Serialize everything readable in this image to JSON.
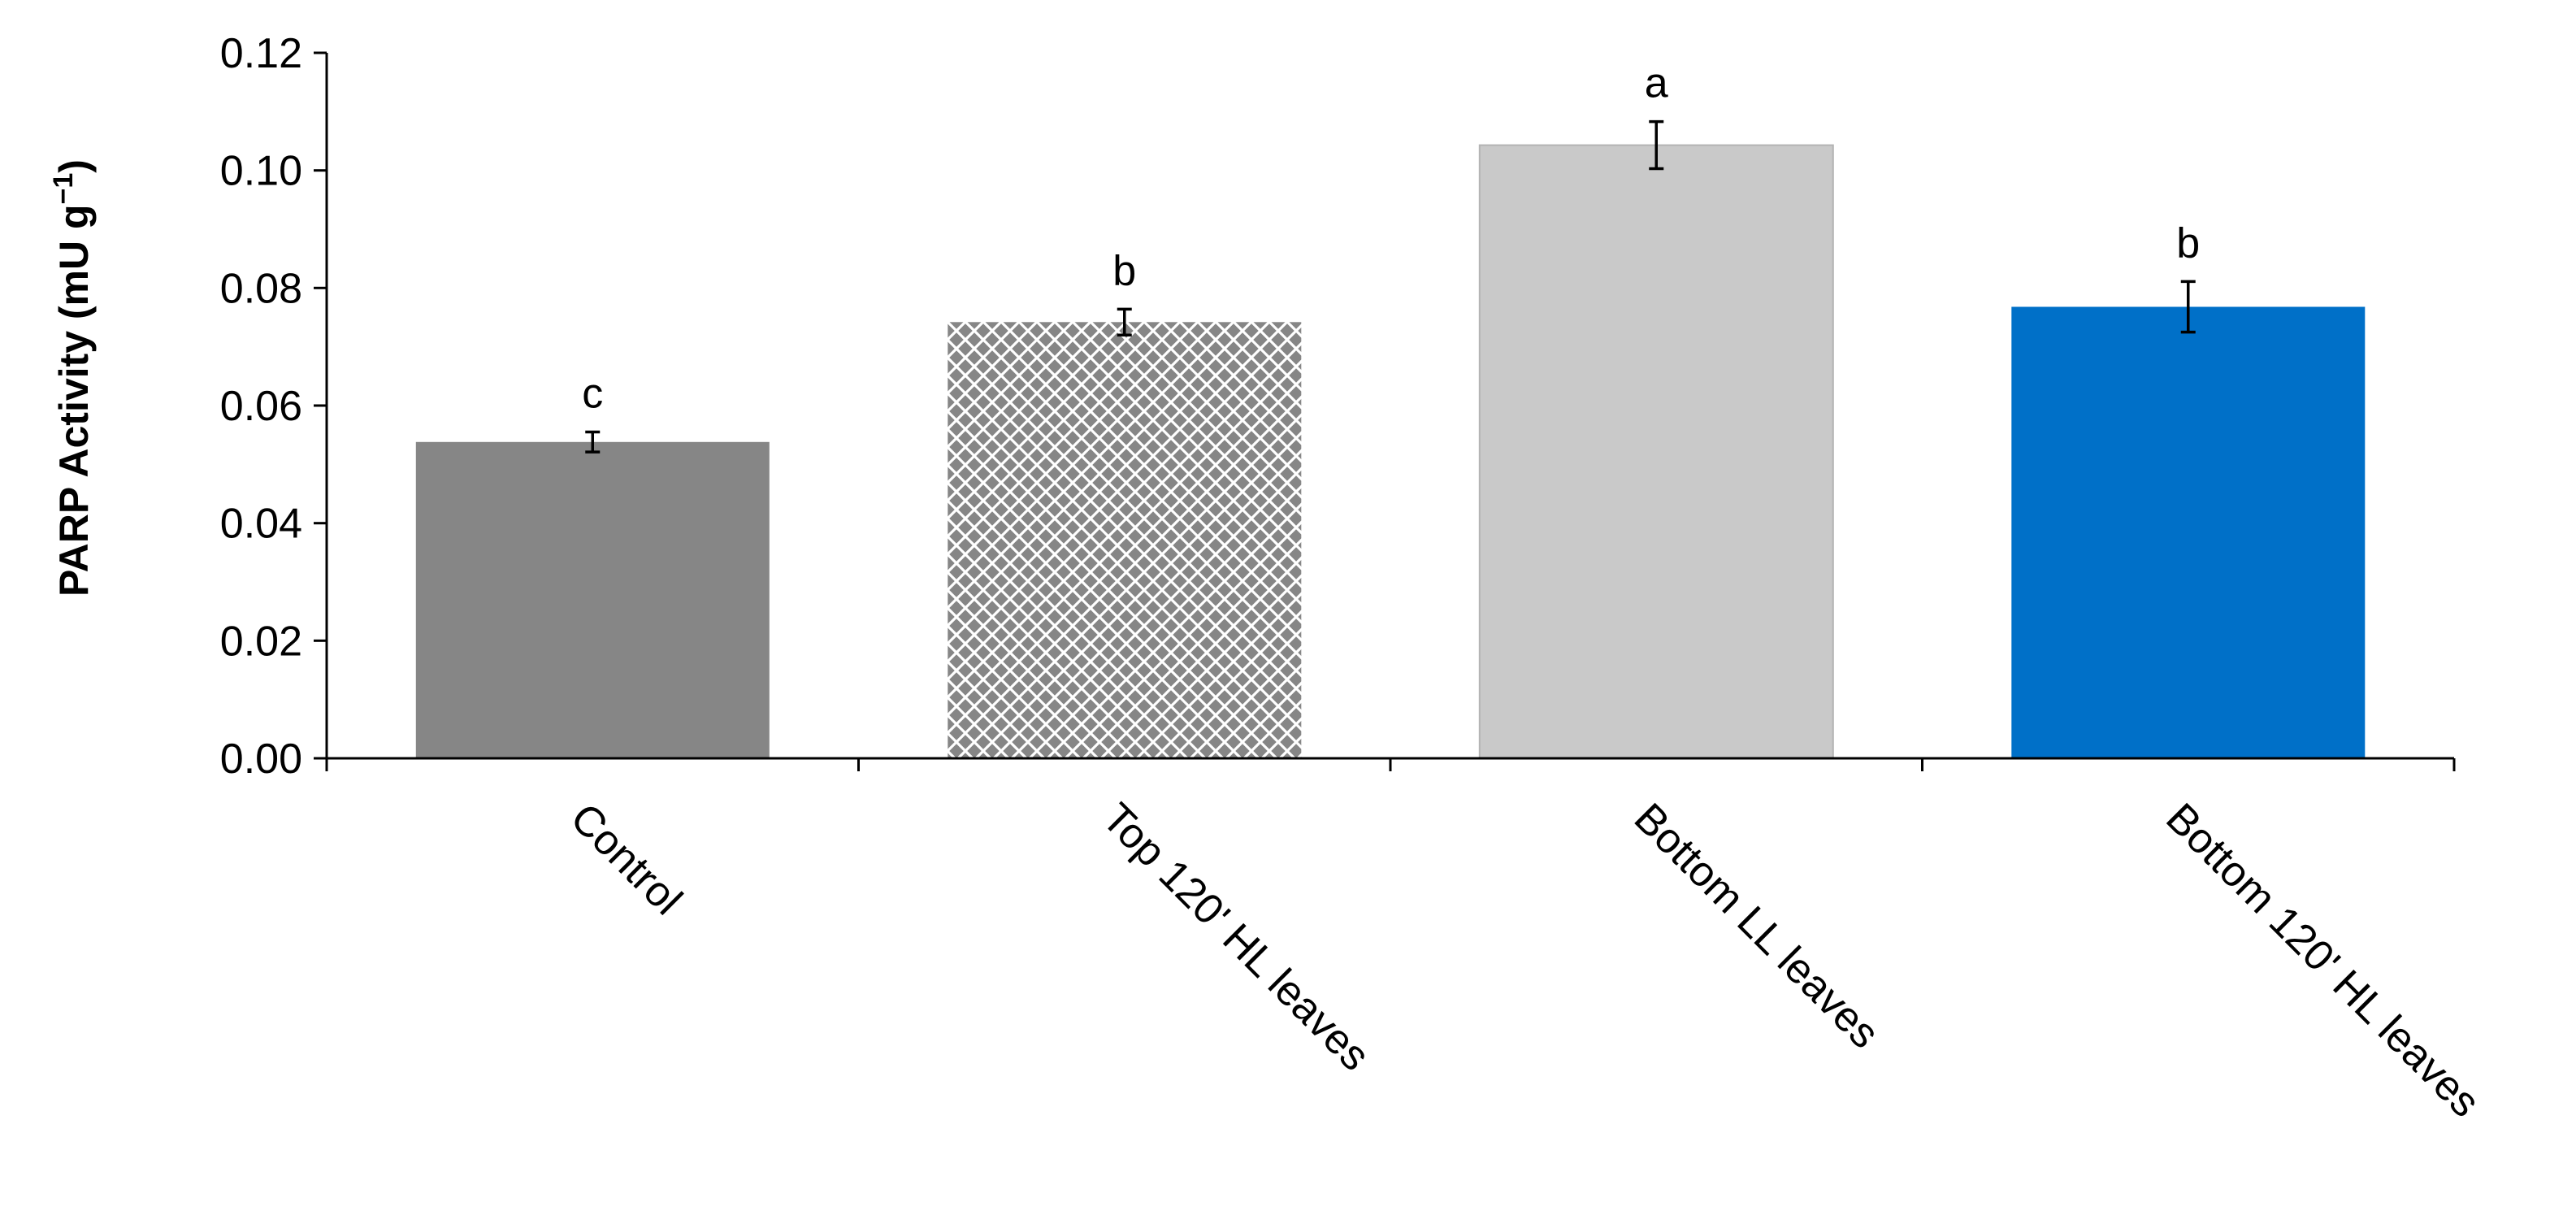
{
  "chart_data": {
    "type": "bar",
    "title": "",
    "xlabel": "",
    "ylabel": "PARP Activity (mU g",
    "ylabel_superscript": "−1",
    "ylabel_close": ")",
    "ylim": [
      0,
      0.12
    ],
    "yticks": [
      "0.00",
      "0.02",
      "0.04",
      "0.06",
      "0.08",
      "0.10",
      "0.12"
    ],
    "grid": false,
    "legend": "none",
    "categories": [
      "Control",
      "Top 120' HL leaves",
      "Bottom LL leaves",
      "Bottom 120' HL leaves"
    ],
    "values": [
      0.0538,
      0.0742,
      0.1043,
      0.0768
    ],
    "errors": [
      0.0017,
      0.0022,
      0.004,
      0.0043
    ],
    "significance_letters": [
      "c",
      "b",
      "a",
      "b"
    ],
    "bar_fills": [
      "solid",
      "crosshatch",
      "solid",
      "solid"
    ],
    "bar_colors": [
      "#868686",
      "#868686",
      "#c9c9c9",
      "#0070c8"
    ]
  }
}
